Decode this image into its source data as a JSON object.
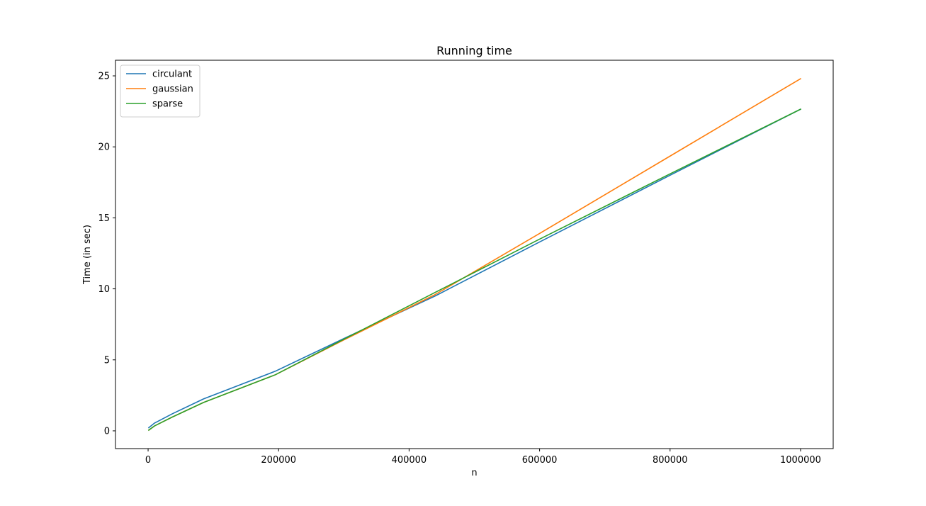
{
  "chart_data": {
    "type": "line",
    "title": "Running time",
    "xlabel": "n",
    "ylabel": "Time (in sec)",
    "xlim": [
      -50000,
      1050000
    ],
    "ylim": [
      -1.25,
      26.1
    ],
    "xticks": [
      0,
      200000,
      400000,
      600000,
      800000,
      1000000
    ],
    "xtick_labels": [
      "0",
      "200000",
      "400000",
      "600000",
      "800000",
      "1000000"
    ],
    "yticks": [
      0,
      5,
      10,
      15,
      20,
      25
    ],
    "ytick_labels": [
      "0",
      "5",
      "10",
      "15",
      "20",
      "25"
    ],
    "grid": false,
    "legend_position": "top-left",
    "series": [
      {
        "name": "circulant",
        "color": "#1f77b4",
        "x": [
          1000,
          10000,
          37000,
          85000,
          195000,
          300000,
          440000,
          600000,
          800000,
          1000000
        ],
        "y": [
          0.22,
          0.55,
          1.2,
          2.25,
          4.2,
          6.5,
          9.5,
          13.3,
          18.0,
          22.65
        ]
      },
      {
        "name": "gaussian",
        "color": "#ff7f0e",
        "x": [
          1000,
          10000,
          37000,
          85000,
          195000,
          300000,
          440000,
          600000,
          800000,
          1000000
        ],
        "y": [
          0.05,
          0.35,
          0.97,
          2.0,
          3.95,
          6.4,
          9.6,
          13.9,
          19.35,
          24.8
        ]
      },
      {
        "name": "sparse",
        "color": "#2ca02c",
        "x": [
          1000,
          10000,
          37000,
          85000,
          195000,
          300000,
          440000,
          600000,
          800000,
          1000000
        ],
        "y": [
          0.05,
          0.35,
          0.97,
          2.0,
          3.95,
          6.45,
          9.75,
          13.5,
          18.1,
          22.65
        ]
      }
    ]
  }
}
